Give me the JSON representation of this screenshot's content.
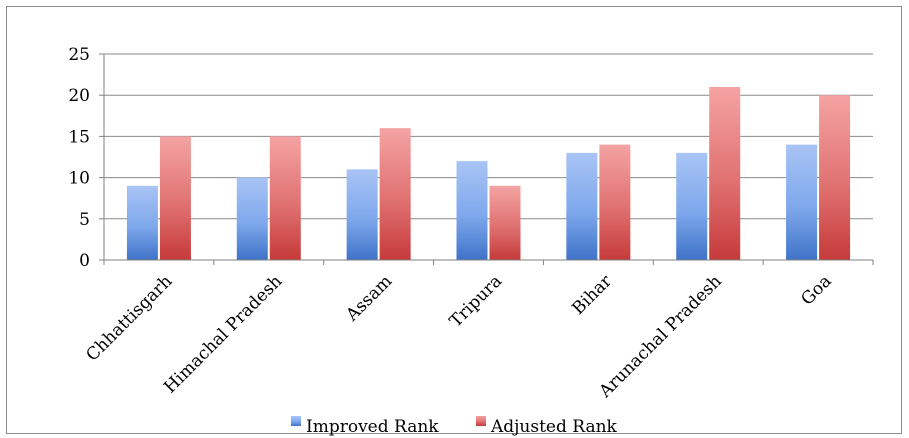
{
  "chart_data": {
    "type": "bar",
    "categories": [
      "Chhattisgarh",
      "Himachal Pradesh",
      "Assam",
      "Tripura",
      "Bihar",
      "Arunachal Pradesh",
      "Goa"
    ],
    "series": [
      {
        "name": "Improved Rank",
        "values": [
          9,
          10,
          11,
          12,
          13,
          13,
          14
        ],
        "color": "#4f81bd"
      },
      {
        "name": "Adjusted Rank",
        "values": [
          15,
          15,
          16,
          9,
          14,
          21,
          20
        ],
        "color": "#c0504d"
      }
    ],
    "ylim": [
      0,
      25
    ],
    "yticks": [
      0,
      5,
      10,
      15,
      20,
      25
    ],
    "grid": true,
    "legend_position": "bottom"
  }
}
